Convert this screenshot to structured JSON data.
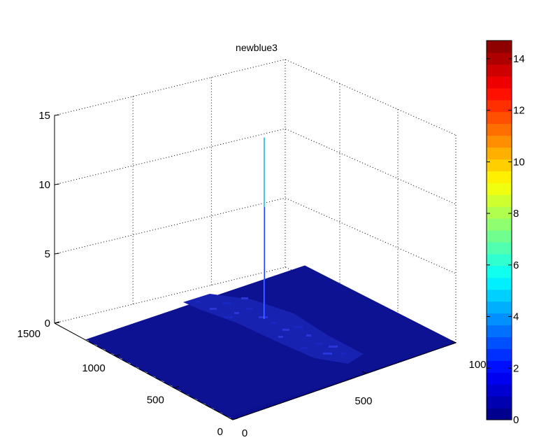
{
  "chart_data": {
    "type": "surface",
    "title": "newblue3",
    "colormap": "jet",
    "zlim": [
      0,
      15
    ],
    "ztick_labels": [
      "0",
      "5",
      "10",
      "15"
    ],
    "ytick_labels": [
      "0",
      "500",
      "1000",
      "1500"
    ],
    "xtick_labels": [
      "0",
      "500",
      "100"
    ],
    "colorbar": {
      "clim": [
        0,
        14.7
      ],
      "tick_labels": [
        "0",
        "2",
        "4",
        "6",
        "8",
        "10",
        "12",
        "14"
      ],
      "colors": [
        "#00008f",
        "#0000b0",
        "#0000d0",
        "#0000f0",
        "#0010ff",
        "#0030ff",
        "#0050ff",
        "#0070ff",
        "#0090ff",
        "#00b0ff",
        "#00d0ff",
        "#00f0ff",
        "#10ffef",
        "#30ffcf",
        "#50ffaf",
        "#70ff8f",
        "#90ff6f",
        "#b0ff4f",
        "#d0ff2f",
        "#f0ff10",
        "#ffef00",
        "#ffcf00",
        "#ffaf00",
        "#ff8f00",
        "#ff6f00",
        "#ff4f00",
        "#ff2f00",
        "#ff1000",
        "#ef0000",
        "#cf0000",
        "#af0000",
        "#8f0000"
      ]
    },
    "surface": {
      "base_value": 0,
      "base_color": "#0b0f8f",
      "peak": {
        "value": 13.1,
        "color": "#1fb6e4"
      }
    }
  }
}
